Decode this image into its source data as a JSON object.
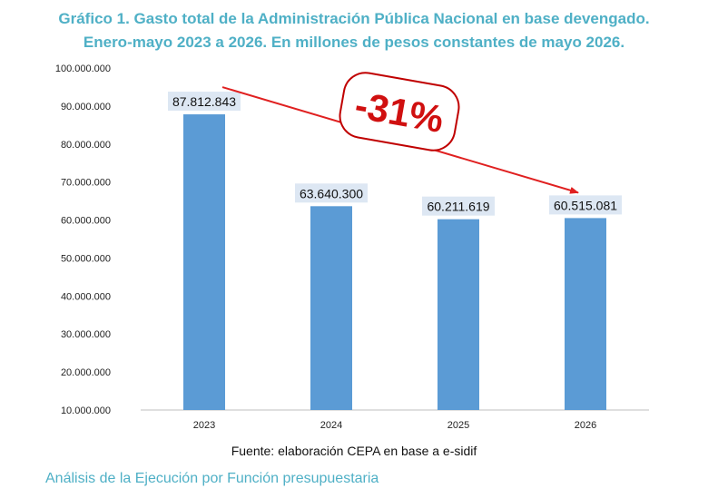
{
  "chart_data": {
    "type": "bar",
    "title_line1": "Gráfico 1. Gasto total de la Administración Pública Nacional en base devengado.",
    "title_line2": "Enero-mayo 2023 a 2026. En millones de pesos constantes de mayo 2026.",
    "categories": [
      "2023",
      "2024",
      "2025",
      "2026"
    ],
    "values": [
      87812843,
      63640300,
      60211619,
      60515081
    ],
    "data_labels": [
      "87.812.843",
      "63.640.300",
      "60.211.619",
      "60.515.081"
    ],
    "y_ticks": [
      10000000,
      20000000,
      30000000,
      40000000,
      50000000,
      60000000,
      70000000,
      80000000,
      90000000,
      100000000
    ],
    "y_tick_labels": [
      "10.000.000",
      "20.000.000",
      "30.000.000",
      "40.000.000",
      "50.000.000",
      "60.000.000",
      "70.000.000",
      "80.000.000",
      "90.000.000",
      "100.000.000"
    ],
    "ylim": [
      10000000,
      100000000
    ],
    "grid": false,
    "annotation": "-31%",
    "bar_color": "#5b9bd5",
    "label_bg_color": "#dde7f3",
    "arrow_color": "#e02020",
    "title_color": "#4fb0c6"
  },
  "source_text": "Fuente: elaboración CEPA en base a e-sidif",
  "footer_text": "Análisis de la Ejecución por Función presupuestaria"
}
